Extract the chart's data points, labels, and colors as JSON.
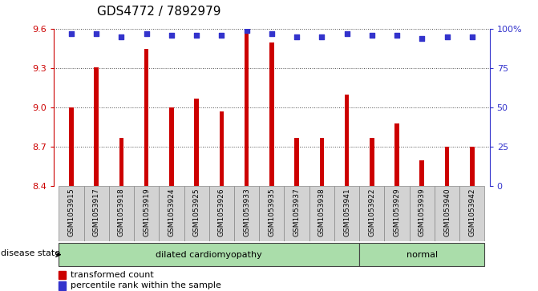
{
  "title": "GDS4772 / 7892979",
  "samples": [
    "GSM1053915",
    "GSM1053917",
    "GSM1053918",
    "GSM1053919",
    "GSM1053924",
    "GSM1053925",
    "GSM1053926",
    "GSM1053933",
    "GSM1053935",
    "GSM1053937",
    "GSM1053938",
    "GSM1053941",
    "GSM1053922",
    "GSM1053929",
    "GSM1053939",
    "GSM1053940",
    "GSM1053942"
  ],
  "bar_values": [
    9.0,
    9.31,
    8.77,
    9.45,
    9.0,
    9.07,
    8.97,
    9.57,
    9.5,
    8.77,
    8.77,
    9.1,
    8.77,
    8.88,
    8.6,
    8.7,
    8.7
  ],
  "percentile_values": [
    97,
    97,
    95,
    97,
    96,
    96,
    96,
    99,
    97,
    95,
    95,
    97,
    96,
    96,
    94,
    95,
    95
  ],
  "ylim": [
    8.4,
    9.6
  ],
  "yticks": [
    8.4,
    8.7,
    9.0,
    9.3,
    9.6
  ],
  "y2ticks": [
    0,
    25,
    50,
    75,
    100
  ],
  "bar_color": "#cc0000",
  "dot_color": "#3333cc",
  "background_color": "#ffffff",
  "axis_color_left": "#cc0000",
  "axis_color_right": "#3333cc",
  "groups": [
    {
      "label": "dilated cardiomyopathy",
      "start": 0,
      "end": 11,
      "color": "#aaddaa"
    },
    {
      "label": "normal",
      "start": 12,
      "end": 16,
      "color": "#aaddaa"
    }
  ],
  "disease_label": "disease state",
  "legend_items": [
    {
      "label": "transformed count",
      "color": "#cc0000"
    },
    {
      "label": "percentile rank within the sample",
      "color": "#3333cc"
    }
  ]
}
